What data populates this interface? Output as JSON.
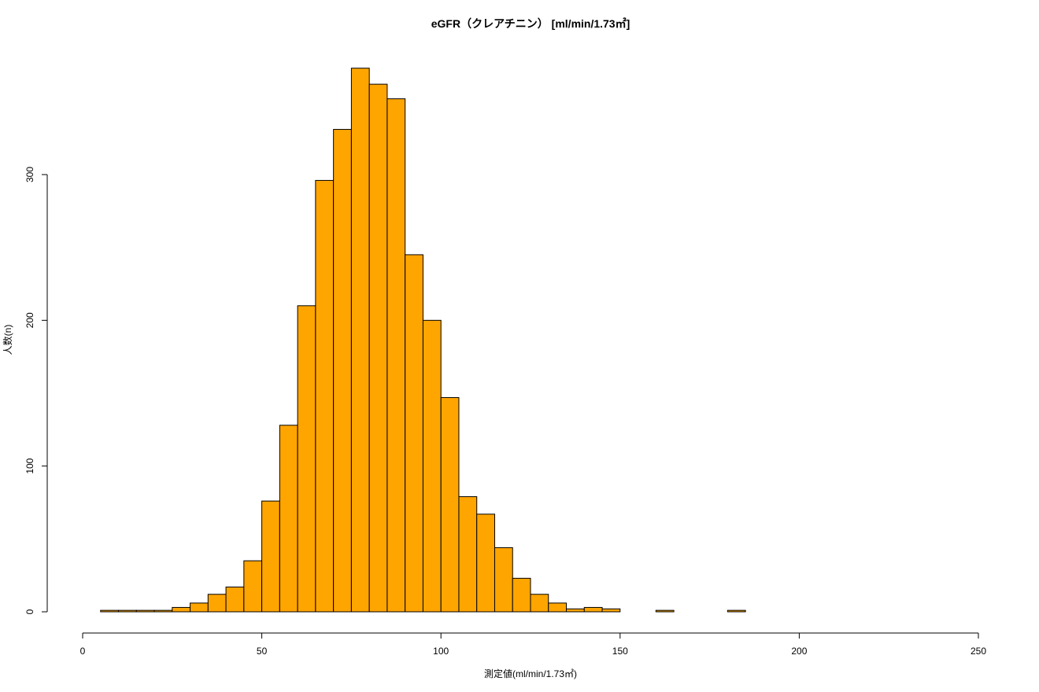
{
  "chart_data": {
    "type": "bar",
    "title": "eGFR（クレアチニン） [ml/min/1.73㎡]",
    "xlabel": "測定値(ml/min/1.73㎡)",
    "ylabel": "人数(n)",
    "xlim": [
      0,
      250
    ],
    "ylim": [
      0,
      380
    ],
    "x_ticks": [
      0,
      50,
      100,
      150,
      200,
      250
    ],
    "y_ticks": [
      0,
      100,
      200,
      300
    ],
    "bar_color": "#FFA500",
    "bin_width": 5,
    "bins_start": 5,
    "values": [
      1,
      1,
      1,
      1,
      3,
      6,
      12,
      17,
      35,
      76,
      128,
      210,
      296,
      331,
      373,
      362,
      352,
      245,
      200,
      147,
      79,
      67,
      44,
      23,
      12,
      6,
      2,
      3,
      2,
      0,
      0,
      1,
      0,
      0,
      0,
      1
    ],
    "grid": false,
    "legend": "none"
  }
}
